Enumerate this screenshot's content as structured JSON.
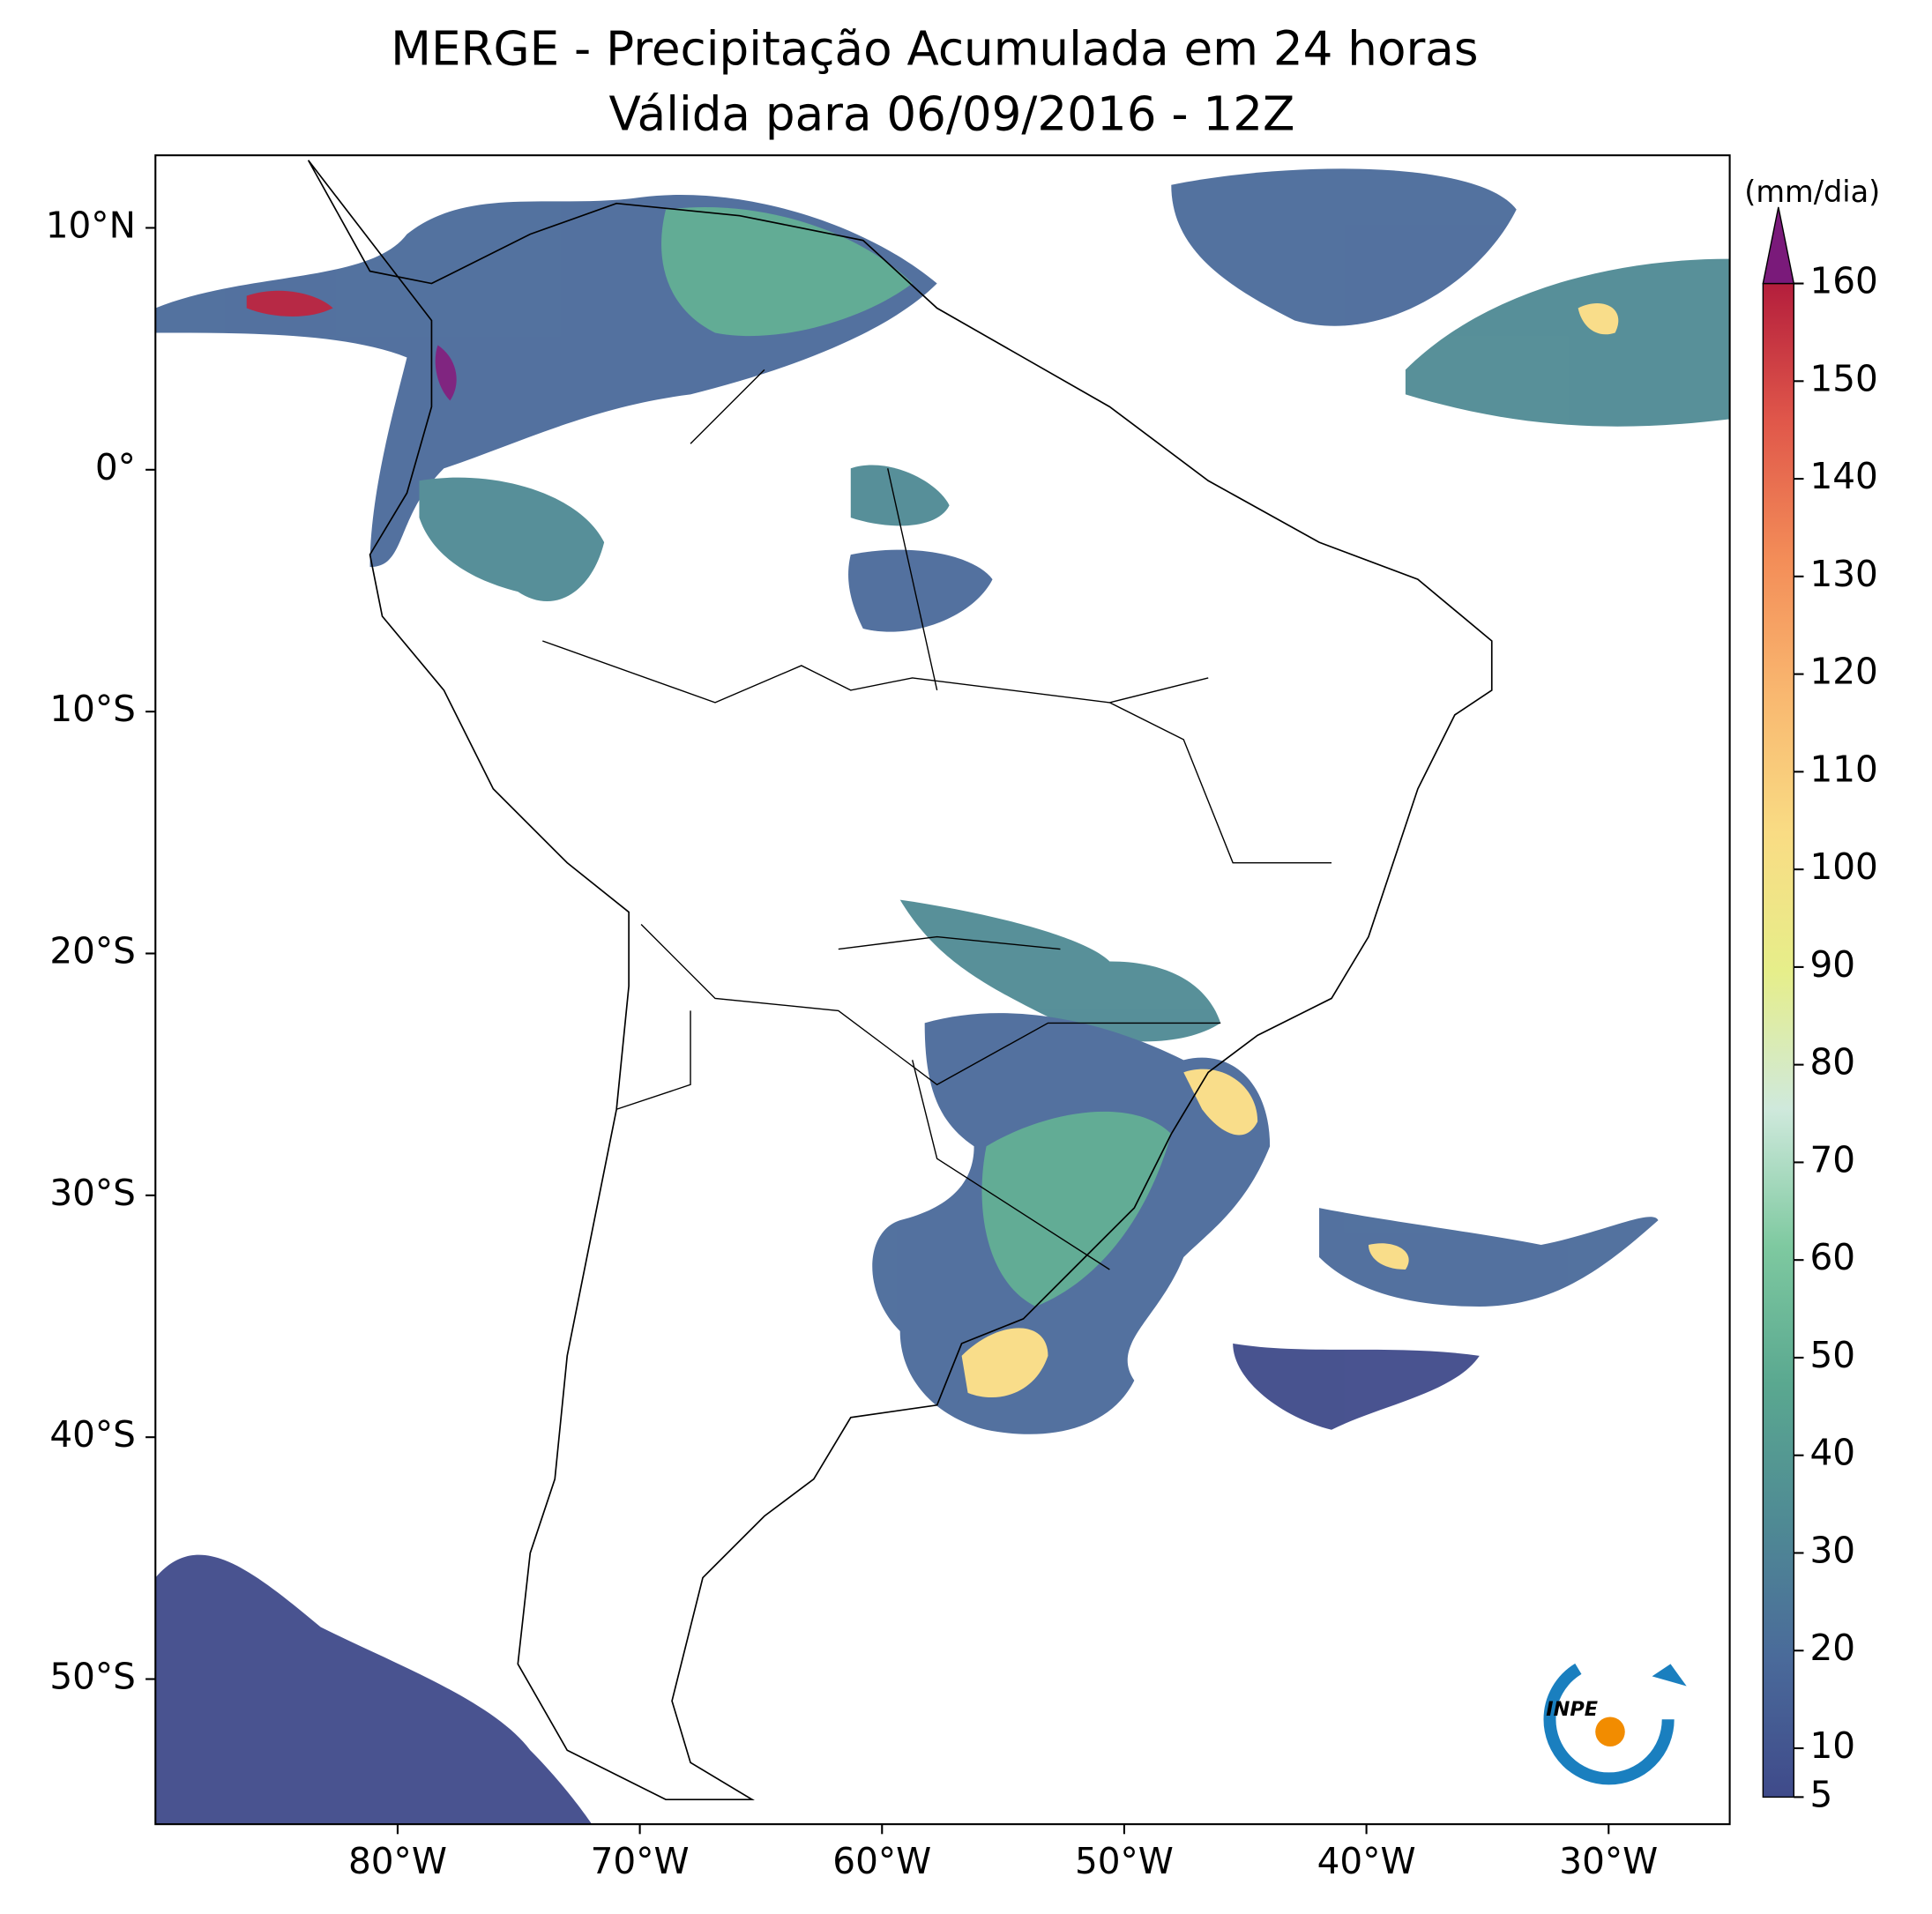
{
  "map": {
    "title": "MERGE - Precipitação Acumulada em 24 horas",
    "subtitle": "Válida para 06/09/2016 - 12Z",
    "xlim": [
      -90,
      -25
    ],
    "ylim": [
      -56,
      13
    ],
    "xticks": [
      {
        "value": -80,
        "label": "80°W"
      },
      {
        "value": -70,
        "label": "70°W"
      },
      {
        "value": -60,
        "label": "60°W"
      },
      {
        "value": -50,
        "label": "50°W"
      },
      {
        "value": -40,
        "label": "40°W"
      },
      {
        "value": -30,
        "label": "30°W"
      }
    ],
    "yticks": [
      {
        "value": 10,
        "label": "10°N"
      },
      {
        "value": 0,
        "label": "0°"
      },
      {
        "value": -10,
        "label": "10°S"
      },
      {
        "value": -20,
        "label": "20°S"
      },
      {
        "value": -30,
        "label": "30°S"
      },
      {
        "value": -40,
        "label": "40°S"
      },
      {
        "value": -50,
        "label": "50°S"
      }
    ],
    "colorbar": {
      "label": "(mm/dia)",
      "lim": [
        5,
        160
      ],
      "ticks": [
        5,
        10,
        20,
        30,
        40,
        50,
        60,
        70,
        80,
        90,
        100,
        110,
        120,
        130,
        140,
        150,
        160
      ],
      "colors": [
        "#3f4a8a",
        "#4a6a9a",
        "#4f8a94",
        "#5aa890",
        "#7ec9a0",
        "#cfe9dc",
        "#e6ee8a",
        "#f9dc84",
        "#f9b870",
        "#f38d58",
        "#e0574a",
        "#b41e3c"
      ],
      "extend_color": "#7a1a7a"
    },
    "logo": "INPE"
  }
}
